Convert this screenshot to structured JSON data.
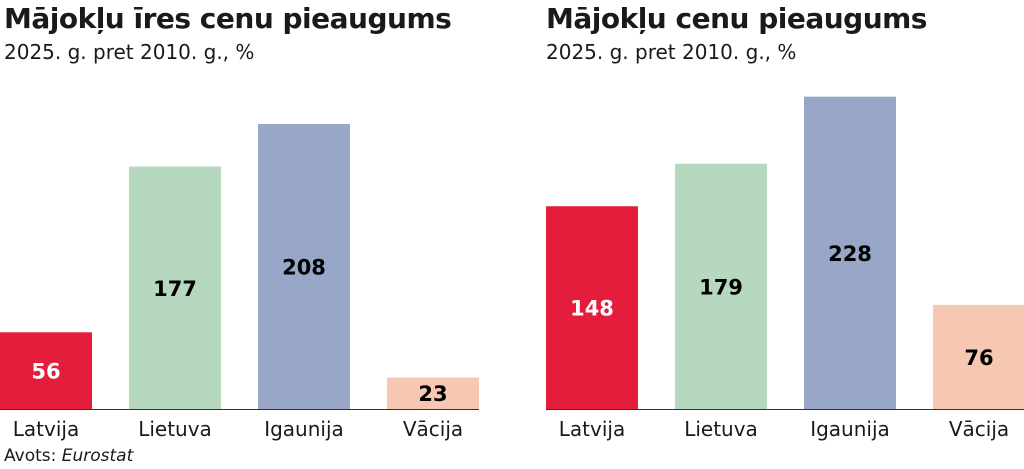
{
  "chart_data": [
    {
      "type": "bar",
      "title": "Mājokļu īres cenu pieaugums",
      "subtitle": "2025. g. pret 2010. g., %",
      "categories": [
        "Latvija",
        "Lietuva",
        "Igaunija",
        "Vācija"
      ],
      "values": [
        56,
        177,
        208,
        23
      ],
      "colors": [
        "#e31d3b",
        "#b6d8bf",
        "#98a7c8",
        "#f6c8b4"
      ],
      "label_colors": [
        "#ffffff",
        "#000000",
        "#000000",
        "#000000"
      ],
      "ylim": [
        0,
        240
      ],
      "grid": false,
      "legend": "none"
    },
    {
      "type": "bar",
      "title": "Mājokļu cenu pieaugums",
      "subtitle": "2025. g. pret 2010. g., %",
      "categories": [
        "Latvija",
        "Lietuva",
        "Igaunija",
        "Vācija"
      ],
      "values": [
        148,
        179,
        228,
        76
      ],
      "colors": [
        "#e31d3b",
        "#b6d8bf",
        "#98a7c8",
        "#f6c8b4"
      ],
      "label_colors": [
        "#ffffff",
        "#000000",
        "#000000",
        "#000000"
      ],
      "ylim": [
        0,
        240
      ],
      "grid": false,
      "legend": "none"
    }
  ],
  "source": {
    "prefix": "Avots: ",
    "name": "Eurostat"
  }
}
